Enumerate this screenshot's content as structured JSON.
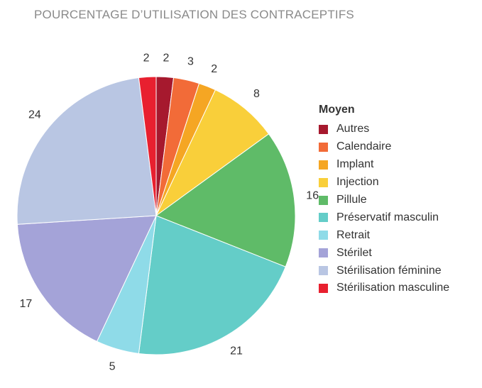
{
  "chart_data": {
    "type": "pie",
    "title": "POURCENTAGE D’UTILISATION DES CONTRACEPTIFS",
    "legend_title": "Moyen",
    "legend_position": "right",
    "slices": [
      {
        "name": "Autres",
        "value": 2,
        "color": "#a6192e"
      },
      {
        "name": "Calendaire",
        "value": 3,
        "color": "#f26b38"
      },
      {
        "name": "Implant",
        "value": 2,
        "color": "#f5a623"
      },
      {
        "name": "Injection",
        "value": 8,
        "color": "#f9cf3a"
      },
      {
        "name": "Pillule",
        "value": 16,
        "color": "#5fbb68"
      },
      {
        "name": "Préservatif masculin",
        "value": 21,
        "color": "#64cdc8"
      },
      {
        "name": "Retrait",
        "value": 5,
        "color": "#8fdbe8"
      },
      {
        "name": "Stérilet",
        "value": 17,
        "color": "#a4a3d8"
      },
      {
        "name": "Stérilisation féminine",
        "value": 24,
        "color": "#b9c6e3"
      },
      {
        "name": "Stérilisation masculine",
        "value": 2,
        "color": "#e8202f"
      }
    ]
  }
}
